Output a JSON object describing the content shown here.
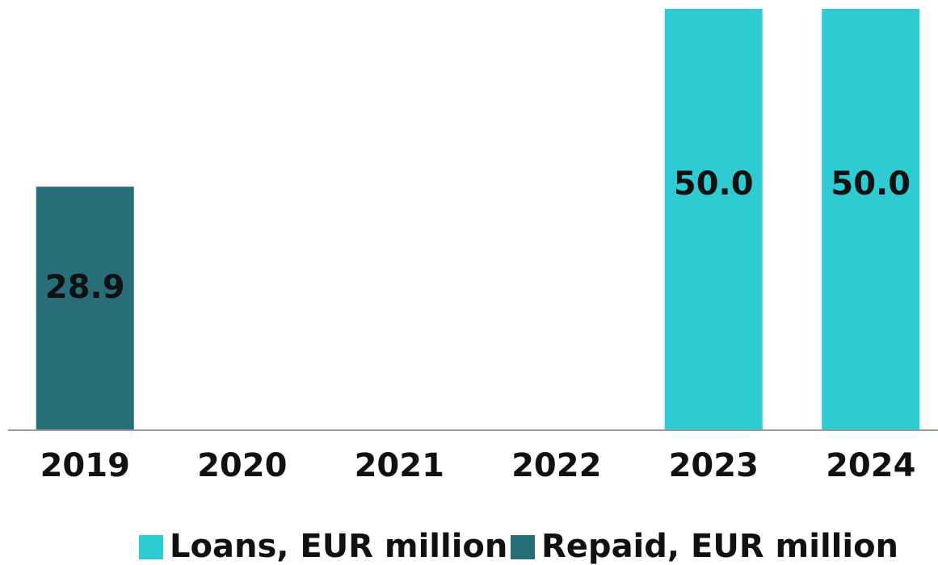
{
  "chart_data": {
    "type": "bar",
    "categories": [
      "2019",
      "2020",
      "2021",
      "2022",
      "2023",
      "2024"
    ],
    "series": [
      {
        "name": "Loans, EUR million",
        "color": "#2ecbd3",
        "values": [
          null,
          null,
          null,
          null,
          50,
          50
        ],
        "value_labels": [
          null,
          null,
          null,
          null,
          "50.0",
          "50.0"
        ]
      },
      {
        "name": "Repaid, EUR million",
        "color": "#276e79",
        "values": [
          28.9,
          null,
          null,
          null,
          null,
          null
        ]
      }
    ],
    "ylim": [
      0,
      50
    ],
    "legend": "bottom"
  }
}
